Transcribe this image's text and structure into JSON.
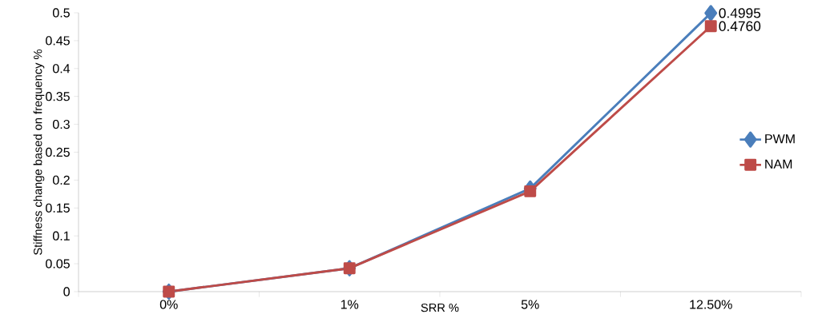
{
  "chart_data": {
    "type": "line",
    "xlabel": "SRR %",
    "ylabel": "Stiffness change based on frequency %",
    "categories": [
      "0%",
      "1%",
      "5%",
      "12.50%"
    ],
    "series": [
      {
        "name": "PWM",
        "color": "#4a7ebb",
        "marker": "diamond",
        "values": [
          0,
          0.042,
          0.185,
          0.4995
        ],
        "value_labels": [
          null,
          null,
          null,
          "0.4995"
        ]
      },
      {
        "name": "NAM",
        "color": "#be4b48",
        "marker": "square",
        "values": [
          0,
          0.042,
          0.18,
          0.476
        ],
        "value_labels": [
          null,
          null,
          null,
          "0.4760"
        ]
      }
    ],
    "ylim": [
      0,
      0.5
    ],
    "yticks": [
      0,
      0.05,
      0.1,
      0.15,
      0.2,
      0.25,
      0.3,
      0.35,
      0.4,
      0.45,
      0.5
    ],
    "grid": false,
    "legend": "right",
    "line_style": "solid"
  }
}
